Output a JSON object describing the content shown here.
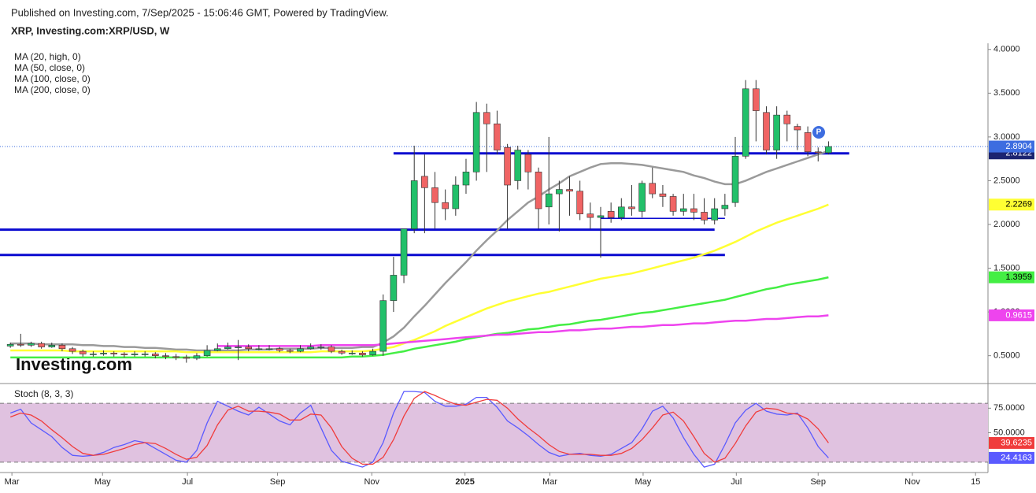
{
  "header": {
    "published": "Published on Investing.com, 7/Sep/2025 - 15:06:46 GMT, Powered by TradingView.",
    "title": "XRP, Investing.com:XRP/USD, W",
    "logo": "Investing.com",
    "badge": "P"
  },
  "chart_data": [
    {
      "type": "candlestick",
      "ylim": [
        0.2,
        4.07
      ],
      "yticks": [
        {
          "value": 4,
          "label": "4.0000"
        },
        {
          "value": 3.5,
          "label": "3.5000"
        },
        {
          "value": 3,
          "label": "3.0000"
        },
        {
          "value": 2.5,
          "label": "2.5000"
        },
        {
          "value": 2,
          "label": "2.0000"
        },
        {
          "value": 1.5,
          "label": "1.5000"
        },
        {
          "value": 1,
          "label": "1.0000"
        },
        {
          "value": 0.5,
          "label": "0.5000"
        }
      ],
      "up_color": "#22c06a",
      "down_color": "#f06464",
      "price_line_color": "#3d6de0",
      "open": [
        0.61,
        0.63,
        0.62,
        0.64,
        0.6,
        0.62,
        0.58,
        0.55,
        0.52,
        0.52,
        0.53,
        0.52,
        0.51,
        0.52,
        0.52,
        0.5,
        0.49,
        0.48,
        0.47,
        0.5,
        0.56,
        0.58,
        0.6,
        0.6,
        0.58,
        0.58,
        0.58,
        0.56,
        0.55,
        0.58,
        0.6,
        0.6,
        0.55,
        0.53,
        0.53,
        0.51,
        0.55,
        1.13,
        1.42,
        1.95,
        2.55,
        2.42,
        2.25,
        2.18,
        2.45,
        2.6,
        3.28,
        3.15,
        2.88,
        2.5,
        2.8,
        2.6,
        2.2,
        2.35,
        2.4,
        2.38,
        2.12,
        2.08,
        2.15,
        2.08,
        2.2,
        2.15,
        2.47,
        2.35,
        2.32,
        2.15,
        2.18,
        2.14,
        2.05,
        2.18,
        2.25,
        2.78,
        3.55,
        3.28,
        2.85,
        3.25,
        3.12,
        3.05,
        2.83,
        2.82
      ],
      "high": [
        0.65,
        0.75,
        0.66,
        0.66,
        0.65,
        0.64,
        0.6,
        0.57,
        0.55,
        0.56,
        0.55,
        0.54,
        0.55,
        0.55,
        0.54,
        0.53,
        0.52,
        0.51,
        0.53,
        0.62,
        0.64,
        0.65,
        0.68,
        0.63,
        0.62,
        0.62,
        0.6,
        0.58,
        0.62,
        0.64,
        0.63,
        0.62,
        0.57,
        0.56,
        0.55,
        0.58,
        1.2,
        1.63,
        1.95,
        2.9,
        2.8,
        2.6,
        2.4,
        2.55,
        2.75,
        3.4,
        3.38,
        3.3,
        2.92,
        2.9,
        2.85,
        2.65,
        3.0,
        2.5,
        2.55,
        2.5,
        2.25,
        2.2,
        2.25,
        2.3,
        2.45,
        2.5,
        2.65,
        2.45,
        2.35,
        2.35,
        2.35,
        2.3,
        2.3,
        2.35,
        3.0,
        3.65,
        3.65,
        3.35,
        3.35,
        3.3,
        3.15,
        3.12,
        2.88,
        2.95
      ],
      "low": [
        0.59,
        0.6,
        0.6,
        0.58,
        0.59,
        0.55,
        0.52,
        0.49,
        0.49,
        0.5,
        0.49,
        0.48,
        0.49,
        0.49,
        0.47,
        0.46,
        0.45,
        0.42,
        0.45,
        0.49,
        0.55,
        0.57,
        0.45,
        0.55,
        0.56,
        0.56,
        0.54,
        0.53,
        0.54,
        0.57,
        0.57,
        0.53,
        0.51,
        0.51,
        0.49,
        0.5,
        0.5,
        1.0,
        1.33,
        1.9,
        1.9,
        1.95,
        2.05,
        2.1,
        2.35,
        2.5,
        2.6,
        2.8,
        1.95,
        2.4,
        2.4,
        1.95,
        2.0,
        1.92,
        2.1,
        2.05,
        1.95,
        1.62,
        2.02,
        2.05,
        2.1,
        2.08,
        2.3,
        2.2,
        2.1,
        2.1,
        2.05,
        2.0,
        2.0,
        2.1,
        2.2,
        2.75,
        2.95,
        2.8,
        2.75,
        2.95,
        2.85,
        2.78,
        2.72,
        2.8
      ],
      "close": [
        0.63,
        0.62,
        0.64,
        0.6,
        0.62,
        0.58,
        0.55,
        0.52,
        0.52,
        0.53,
        0.52,
        0.51,
        0.52,
        0.52,
        0.5,
        0.49,
        0.48,
        0.47,
        0.5,
        0.56,
        0.58,
        0.6,
        0.6,
        0.58,
        0.58,
        0.58,
        0.56,
        0.55,
        0.58,
        0.6,
        0.6,
        0.55,
        0.53,
        0.53,
        0.51,
        0.55,
        1.13,
        1.42,
        1.95,
        2.5,
        2.42,
        2.25,
        2.18,
        2.45,
        2.6,
        3.28,
        3.15,
        2.85,
        2.45,
        2.85,
        2.6,
        2.18,
        2.35,
        2.4,
        2.38,
        2.12,
        2.08,
        2.1,
        2.08,
        2.2,
        2.18,
        2.47,
        2.35,
        2.32,
        2.15,
        2.18,
        2.14,
        2.05,
        2.18,
        2.22,
        2.78,
        3.55,
        3.3,
        2.85,
        3.25,
        3.15,
        3.08,
        2.83,
        2.82,
        2.8904
      ],
      "series": [
        {
          "name": "MA (20, high, 0)",
          "color": "#9a9a9a",
          "badge": false,
          "values": [
            0.64,
            0.64,
            0.64,
            0.63,
            0.63,
            0.63,
            0.63,
            0.62,
            0.62,
            0.61,
            0.61,
            0.6,
            0.6,
            0.59,
            0.59,
            0.58,
            0.57,
            0.57,
            0.56,
            0.56,
            0.56,
            0.56,
            0.56,
            0.57,
            0.57,
            0.57,
            0.58,
            0.58,
            0.58,
            0.58,
            0.59,
            0.59,
            0.59,
            0.59,
            0.6,
            0.6,
            0.65,
            0.72,
            0.82,
            0.95,
            1.07,
            1.2,
            1.33,
            1.45,
            1.57,
            1.7,
            1.82,
            1.93,
            2.05,
            2.15,
            2.25,
            2.32,
            2.4,
            2.47,
            2.55,
            2.6,
            2.65,
            2.69,
            2.7,
            2.7,
            2.69,
            2.68,
            2.66,
            2.64,
            2.62,
            2.6,
            2.56,
            2.53,
            2.49,
            2.46,
            2.46,
            2.5,
            2.55,
            2.6,
            2.64,
            2.68,
            2.72,
            2.76,
            2.8,
            2.84
          ]
        },
        {
          "name": "MA (50, close, 0)",
          "color": "#ffff33",
          "badge": true,
          "text_color": "#000",
          "values": [
            0.56,
            0.56,
            0.56,
            0.56,
            0.56,
            0.56,
            0.55,
            0.55,
            0.55,
            0.55,
            0.55,
            0.55,
            0.55,
            0.55,
            0.55,
            0.55,
            0.55,
            0.54,
            0.54,
            0.54,
            0.54,
            0.54,
            0.54,
            0.54,
            0.54,
            0.54,
            0.54,
            0.54,
            0.54,
            0.54,
            0.55,
            0.55,
            0.55,
            0.55,
            0.55,
            0.56,
            0.58,
            0.6,
            0.64,
            0.68,
            0.73,
            0.78,
            0.84,
            0.89,
            0.94,
            0.99,
            1.04,
            1.08,
            1.12,
            1.15,
            1.18,
            1.21,
            1.23,
            1.26,
            1.29,
            1.32,
            1.35,
            1.38,
            1.4,
            1.42,
            1.44,
            1.47,
            1.5,
            1.53,
            1.56,
            1.59,
            1.62,
            1.66,
            1.7,
            1.75,
            1.8,
            1.86,
            1.92,
            1.97,
            2.02,
            2.06,
            2.1,
            2.14,
            2.18,
            2.2269
          ]
        },
        {
          "name": "MA (100, close, 0)",
          "color": "#44ee44",
          "badge": true,
          "text_color": "#000",
          "values": [
            0.48,
            0.48,
            0.48,
            0.48,
            0.48,
            0.48,
            0.48,
            0.48,
            0.48,
            0.48,
            0.48,
            0.48,
            0.48,
            0.48,
            0.48,
            0.48,
            0.48,
            0.48,
            0.48,
            0.48,
            0.48,
            0.48,
            0.48,
            0.48,
            0.48,
            0.48,
            0.48,
            0.48,
            0.48,
            0.48,
            0.48,
            0.48,
            0.48,
            0.49,
            0.49,
            0.5,
            0.51,
            0.53,
            0.55,
            0.58,
            0.6,
            0.62,
            0.64,
            0.66,
            0.69,
            0.71,
            0.73,
            0.75,
            0.76,
            0.78,
            0.8,
            0.81,
            0.83,
            0.85,
            0.86,
            0.88,
            0.9,
            0.91,
            0.93,
            0.95,
            0.97,
            0.99,
            1.0,
            1.02,
            1.04,
            1.06,
            1.08,
            1.1,
            1.12,
            1.14,
            1.17,
            1.2,
            1.23,
            1.26,
            1.28,
            1.31,
            1.33,
            1.35,
            1.37,
            1.3959
          ]
        },
        {
          "name": "MA (200, close, 0)",
          "color": "#ee44ee",
          "badge": true,
          "text_color": "#fff",
          "values": [
            null,
            null,
            null,
            null,
            null,
            null,
            null,
            null,
            null,
            null,
            null,
            null,
            null,
            null,
            null,
            null,
            null,
            null,
            null,
            null,
            0.61,
            0.61,
            0.61,
            0.61,
            0.61,
            0.61,
            0.61,
            0.61,
            0.61,
            0.61,
            0.62,
            0.62,
            0.62,
            0.62,
            0.62,
            0.62,
            0.63,
            0.64,
            0.65,
            0.66,
            0.67,
            0.68,
            0.69,
            0.7,
            0.71,
            0.72,
            0.73,
            0.74,
            0.74,
            0.75,
            0.76,
            0.77,
            0.77,
            0.78,
            0.79,
            0.79,
            0.8,
            0.81,
            0.81,
            0.82,
            0.83,
            0.83,
            0.84,
            0.85,
            0.85,
            0.86,
            0.87,
            0.87,
            0.88,
            0.89,
            0.9,
            0.9,
            0.91,
            0.92,
            0.92,
            0.93,
            0.94,
            0.95,
            0.95,
            0.9615
          ]
        }
      ],
      "level_color": "#0a0ad0",
      "levels": [
        {
          "value": 2.8122,
          "from": 37,
          "to": 81,
          "badge": true
        },
        {
          "value": 1.94,
          "from": -1,
          "to": 68
        },
        {
          "value": 1.651,
          "from": -1,
          "to": 69
        },
        {
          "value": 2.07,
          "from": 57,
          "to": 69,
          "thin": true
        }
      ]
    },
    {
      "type": "line",
      "title": "Stoch (8, 3, 3)",
      "xlim": [
        -1,
        94.4
      ],
      "xticks": [
        {
          "value": 0.15,
          "label": "Mar"
        },
        {
          "value": 8.9,
          "label": "May"
        },
        {
          "value": 17.1,
          "label": "Jul"
        },
        {
          "value": 25.8,
          "label": "Sep"
        },
        {
          "value": 34.9,
          "label": "Nov"
        },
        {
          "value": 43.9,
          "label": "2025",
          "bold": true
        },
        {
          "value": 52.1,
          "label": "Mar"
        },
        {
          "value": 61.1,
          "label": "May"
        },
        {
          "value": 70.1,
          "label": "Jul"
        },
        {
          "value": 78,
          "label": "Sep"
        },
        {
          "value": 87.1,
          "label": "Nov"
        },
        {
          "value": 93.2,
          "label": "15"
        }
      ],
      "ylim": [
        9.5,
        97.7
      ],
      "yticks": [
        {
          "value": 75,
          "label": "75.0000"
        },
        {
          "value": 50,
          "label": "50.0000"
        }
      ],
      "bands": [
        20,
        80
      ],
      "band_color": "#e0c2e0",
      "series": [
        {
          "color": "#5a5aff",
          "values": [
            70,
            74,
            60,
            53,
            46,
            35,
            27,
            26,
            27,
            30,
            35,
            38,
            42,
            40,
            34,
            28,
            22,
            20,
            32,
            60,
            82,
            77,
            72,
            68,
            76,
            69,
            62,
            58,
            70,
            78,
            55,
            32,
            21,
            18,
            15,
            20,
            40,
            70,
            92,
            92,
            91,
            82,
            77,
            77,
            79,
            86,
            86,
            76,
            62,
            55,
            47,
            38,
            30,
            26,
            28,
            29,
            27,
            26,
            28,
            34,
            40,
            54,
            72,
            77,
            65,
            45,
            28,
            15,
            18,
            38,
            60,
            73,
            80,
            72,
            69,
            68,
            70,
            55,
            36,
            24.4163
          ]
        },
        {
          "color": "#f03c3c",
          "values": [
            66,
            70,
            68,
            62,
            53,
            45,
            36,
            29,
            27,
            28,
            31,
            34,
            38,
            40,
            39,
            34,
            28,
            23,
            25,
            37,
            58,
            73,
            77,
            72,
            72,
            71,
            69,
            63,
            63,
            69,
            68,
            55,
            36,
            24,
            18,
            18,
            25,
            43,
            67,
            85,
            92,
            88,
            83,
            79,
            78,
            81,
            84,
            83,
            75,
            64,
            55,
            47,
            38,
            31,
            28,
            28,
            28,
            27,
            27,
            29,
            34,
            43,
            55,
            68,
            71,
            62,
            46,
            29,
            20,
            24,
            39,
            57,
            71,
            75,
            74,
            70,
            69,
            64,
            54,
            39.6235
          ]
        }
      ]
    }
  ]
}
